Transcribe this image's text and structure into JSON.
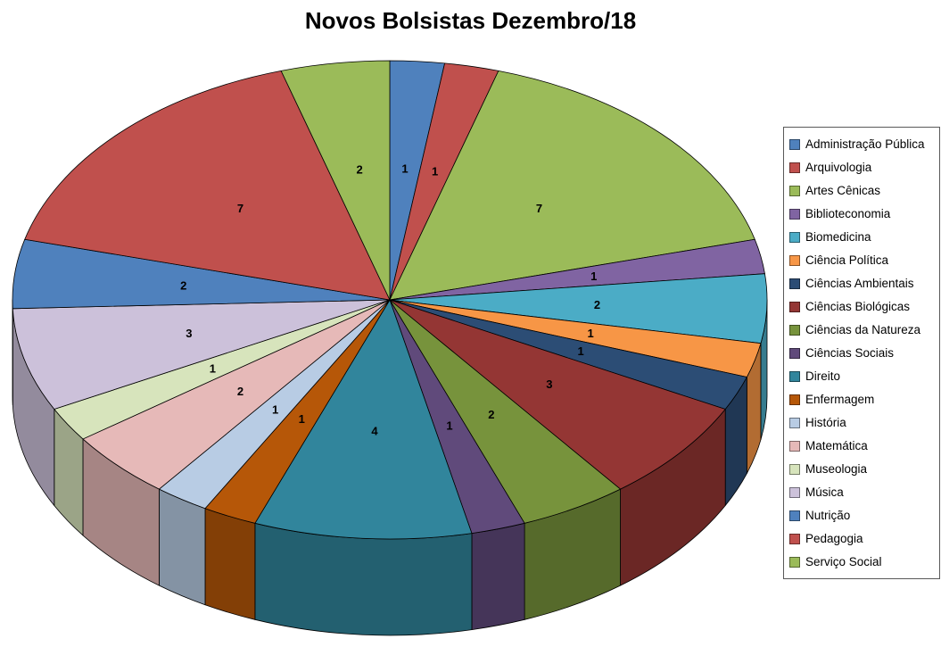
{
  "chart_data": {
    "type": "pie",
    "title": "Novos Bolsistas Dezembro/18",
    "style": "3d-pie",
    "legend_position": "right",
    "data_labels": "value",
    "start_angle_deg": 0,
    "direction": "clockwise",
    "total": 43,
    "categories": [
      "Administração Pública",
      "Arquivologia",
      "Artes Cênicas",
      "Biblioteconomia",
      "Biomedicina",
      "Ciência Política",
      "Ciências Ambientais",
      "Ciências Biológicas",
      "Ciências da Natureza",
      "Ciências Sociais",
      "Direito",
      "Enfermagem",
      "História",
      "Matemática",
      "Museologia",
      "Música",
      "Nutrição",
      "Pedagogia",
      "Serviço Social"
    ],
    "values": [
      1,
      1,
      7,
      1,
      2,
      1,
      1,
      3,
      2,
      1,
      4,
      1,
      1,
      2,
      1,
      3,
      2,
      7,
      2
    ],
    "colors": [
      "#4F81BD",
      "#C0504D",
      "#9BBB59",
      "#8064A2",
      "#4BACC6",
      "#F79646",
      "#2C4D75",
      "#943634",
      "#77933C",
      "#604A7B",
      "#31859C",
      "#B65708",
      "#B8CCE4",
      "#E6B9B8",
      "#D7E4BC",
      "#CCC1DA",
      "#4F81BD",
      "#C0504D",
      "#9BBB59"
    ]
  }
}
